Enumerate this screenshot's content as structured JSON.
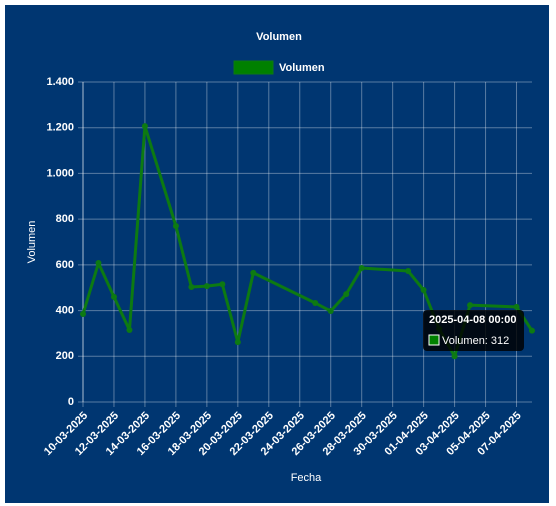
{
  "chart_data": {
    "type": "line",
    "title": "Volumen",
    "xlabel": "Fecha",
    "ylabel": "Volumen",
    "x": [
      "10-03-2025",
      "11-03-2025",
      "12-03-2025",
      "13-03-2025",
      "14-03-2025",
      "16-03-2025",
      "17-03-2025",
      "18-03-2025",
      "19-03-2025",
      "20-03-2025",
      "21-03-2025",
      "25-03-2025",
      "26-03-2025",
      "27-03-2025",
      "28-03-2025",
      "31-03-2025",
      "01-04-2025",
      "02-04-2025",
      "03-04-2025",
      "04-04-2025",
      "07-04-2025",
      "08-04-2025"
    ],
    "series": [
      {
        "name": "Volumen",
        "color": "#0d7a12",
        "values": [
          385,
          608,
          460,
          315,
          1207,
          770,
          503,
          507,
          515,
          262,
          565,
          433,
          398,
          472,
          586,
          573,
          490,
          320,
          200,
          424,
          416,
          312
        ]
      }
    ],
    "xlim": [
      "10-03-2025",
      "08-04-2025"
    ],
    "xticks": [
      "10-03-2025",
      "12-03-2025",
      "14-03-2025",
      "16-03-2025",
      "18-03-2025",
      "20-03-2025",
      "22-03-2025",
      "24-03-2025",
      "26-03-2025",
      "28-03-2025",
      "30-03-2025",
      "01-04-2025",
      "03-04-2025",
      "05-04-2025",
      "07-04-2025"
    ],
    "ylim": [
      0,
      1400
    ],
    "yticks": [
      0,
      200,
      400,
      600,
      800,
      {
        "value": 1000,
        "label": "1.000"
      },
      {
        "value": 1200,
        "label": "1.200"
      },
      {
        "value": 1400,
        "label": "1.400"
      }
    ],
    "grid": true,
    "legend": "top",
    "tooltip": {
      "title": "2025-04-08 00:00",
      "label": "Volumen: 312"
    }
  }
}
